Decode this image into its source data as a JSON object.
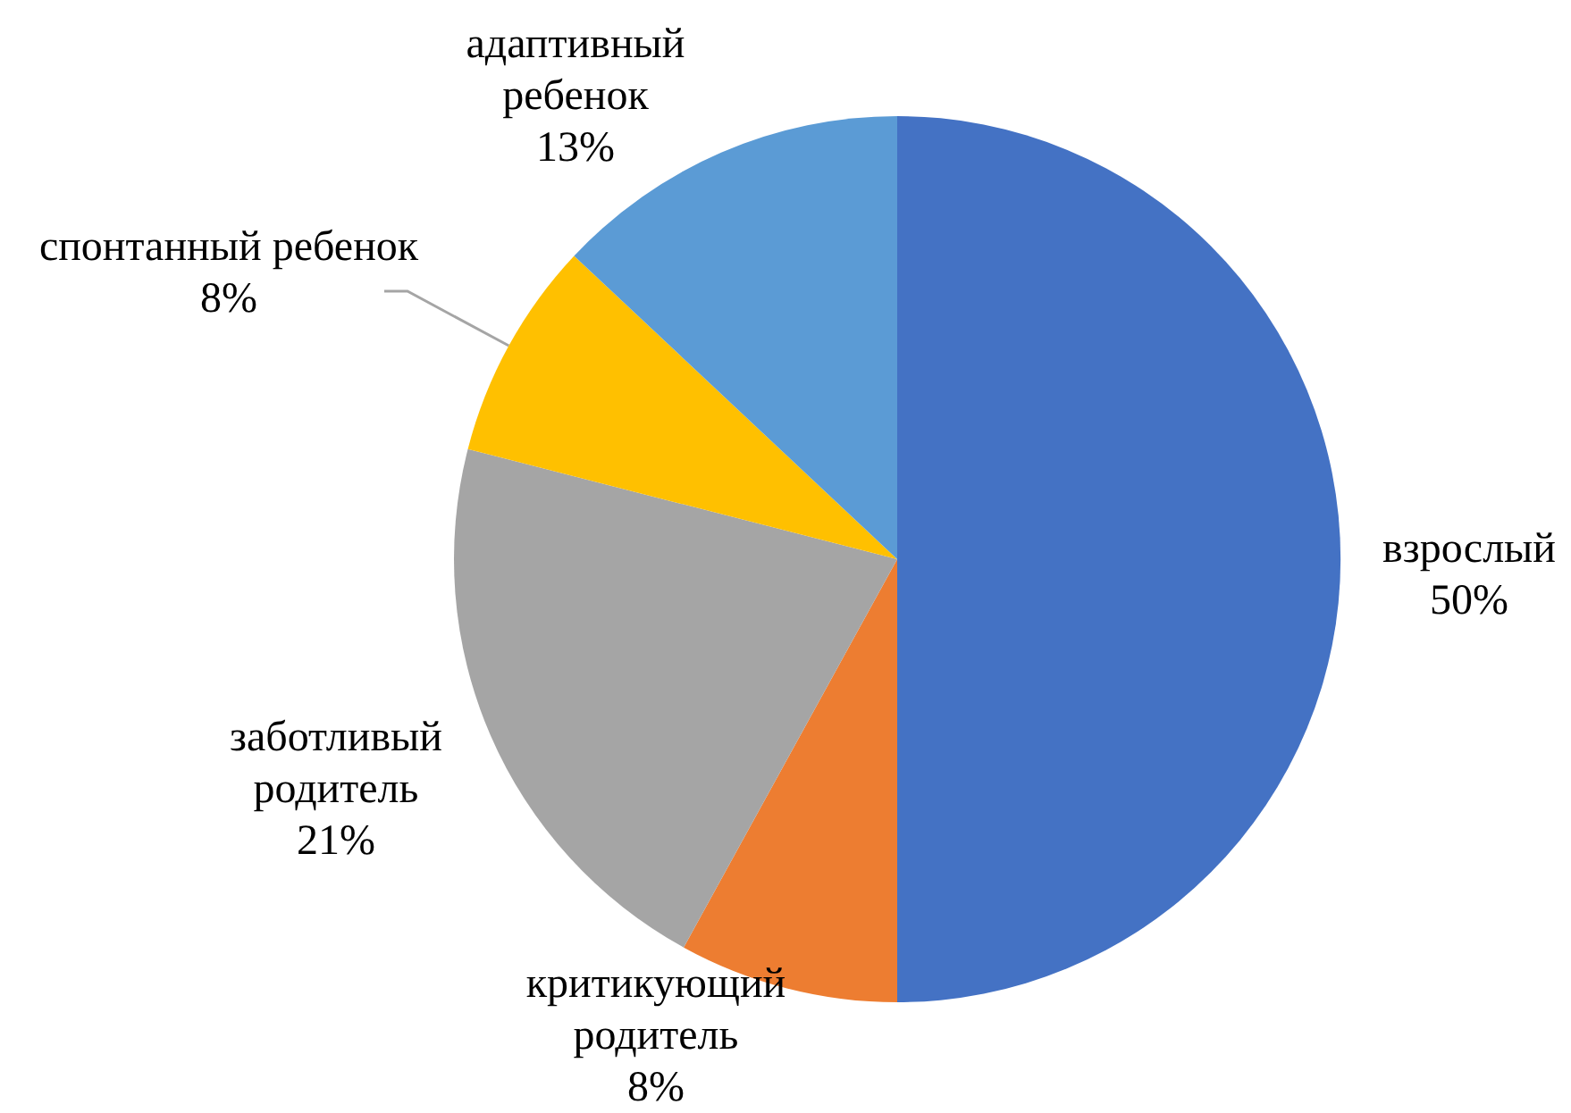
{
  "chart_data": {
    "type": "pie",
    "categories": [
      "взрослый",
      "критикующий родитель",
      "заботливый родитель",
      "спонтанный ребенок",
      "адаптивный ребенок"
    ],
    "values": [
      50,
      8,
      21,
      8,
      13
    ],
    "colors": [
      "#4472c4",
      "#ed7d31",
      "#a5a5a5",
      "#ffc000",
      "#5b9bd5"
    ],
    "value_labels": [
      "50%",
      "8%",
      "21%",
      "8%",
      "13%"
    ]
  }
}
